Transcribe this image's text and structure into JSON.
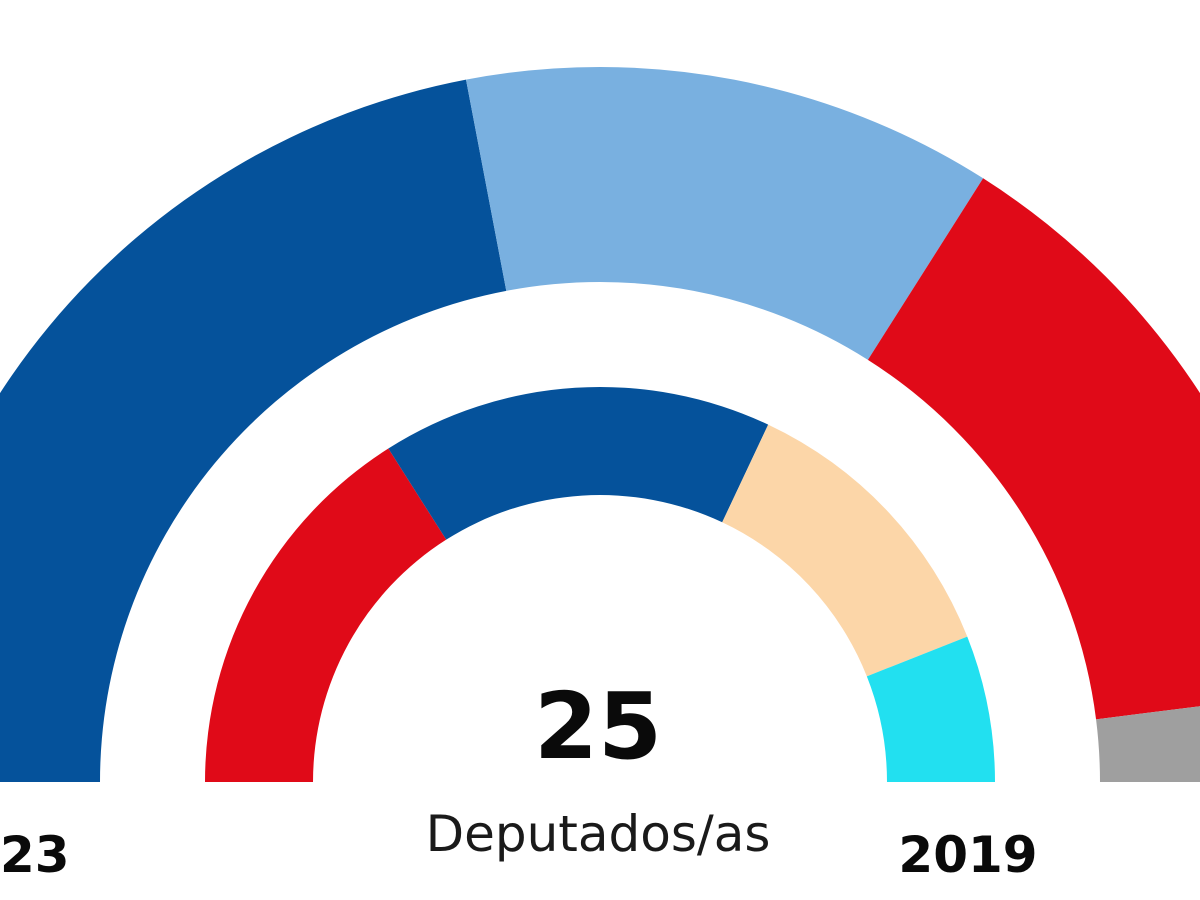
{
  "chart_data": {
    "type": "pie",
    "subtype": "parliament-semicircle",
    "total_seats": 25,
    "total_label": "Deputados/as",
    "rings": [
      {
        "name": "outer",
        "year_label": "23",
        "segments": [
          {
            "color": "#05529b",
            "seats": 11
          },
          {
            "color": "#79b0e0",
            "seats": 6
          },
          {
            "color": "#e00a18",
            "seats": 7
          },
          {
            "color": "#9f9f9f",
            "seats": 1
          }
        ]
      },
      {
        "name": "inner",
        "year_label": "2019",
        "segments": [
          {
            "color": "#e00a18",
            "seats": 8
          },
          {
            "color": "#05529b",
            "seats": 8
          },
          {
            "color": "#fcd6a8",
            "seats": 6
          },
          {
            "color": "#22e0f0",
            "seats": 3
          }
        ]
      }
    ]
  }
}
